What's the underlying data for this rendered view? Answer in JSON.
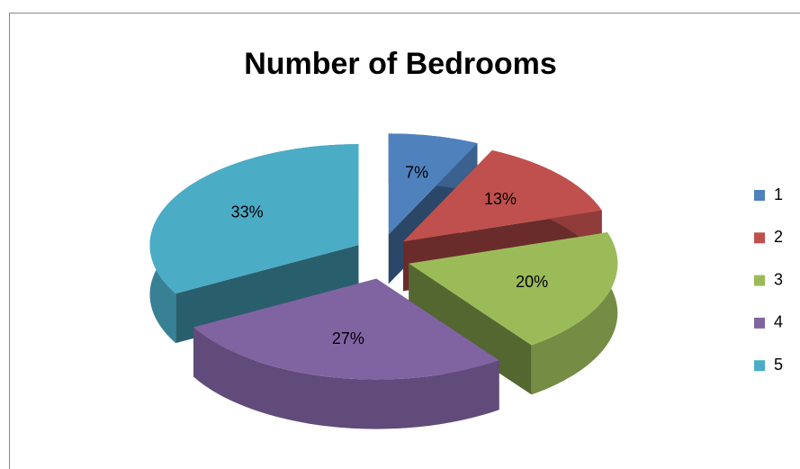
{
  "chart_data": {
    "type": "pie3d",
    "title": "Number of Bedrooms",
    "categories": [
      "1",
      "2",
      "3",
      "4",
      "5"
    ],
    "values": [
      7,
      13,
      20,
      27,
      33
    ],
    "value_labels": [
      "7%",
      "13%",
      "20%",
      "27%",
      "33%"
    ],
    "colors": [
      "#4f81bd",
      "#c0504d",
      "#9bbb59",
      "#8064a2",
      "#4bacc6"
    ],
    "legend": "right"
  }
}
